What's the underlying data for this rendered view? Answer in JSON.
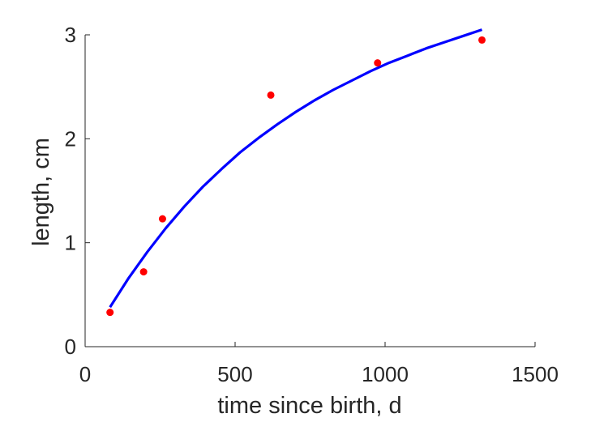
{
  "chart_data": {
    "type": "scatter",
    "title": "",
    "xlabel": "time since birth, d",
    "ylabel": "length, cm",
    "xlim": [
      0,
      1500
    ],
    "ylim": [
      0,
      3
    ],
    "xticks": [
      0,
      500,
      1000,
      1500
    ],
    "yticks": [
      0,
      1,
      2,
      3
    ],
    "grid": false,
    "colors": {
      "points": "#ff0000",
      "fit": "#0000ff",
      "axis": "#262626"
    },
    "series": [
      {
        "kind": "points",
        "x": [
          83,
          195,
          258,
          619,
          975,
          1323
        ],
        "y": [
          0.33,
          0.72,
          1.23,
          2.42,
          2.73,
          2.95
        ]
      },
      {
        "kind": "line",
        "x": [
          83,
          145,
          207,
          269,
          331,
          393,
          455,
          517,
          579,
          641,
          703,
          765,
          827,
          889,
          951,
          1013,
          1075,
          1137,
          1199,
          1261,
          1323
        ],
        "y": [
          0.38,
          0.66,
          0.91,
          1.14,
          1.35,
          1.54,
          1.71,
          1.87,
          2.01,
          2.14,
          2.26,
          2.37,
          2.47,
          2.56,
          2.65,
          2.73,
          2.8,
          2.87,
          2.93,
          2.99,
          3.05
        ]
      }
    ]
  }
}
